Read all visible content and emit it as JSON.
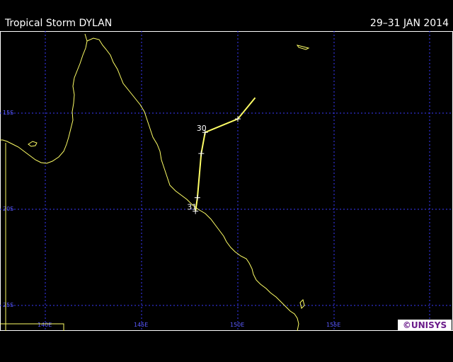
{
  "header": {
    "title": "Tropical Storm DYLAN",
    "date_range": "29–31 JAN 2014"
  },
  "map": {
    "lat_labels": [
      "15S",
      "20S",
      "25S"
    ],
    "lon_labels": [
      "140E",
      "145E",
      "150E",
      "155E"
    ],
    "grid_color": "#3a3aff",
    "coast_color": "#ffff66",
    "track_color": "#ffff66"
  },
  "storm_track": {
    "points": [
      {
        "lat": -14.2,
        "lon": 150.9
      },
      {
        "lat": -15.3,
        "lon": 150.0
      },
      {
        "lat": -16.0,
        "lon": 148.3,
        "label": "30"
      },
      {
        "lat": -17.1,
        "lon": 148.1
      },
      {
        "lat": -19.4,
        "lon": 147.9
      },
      {
        "lat": -20.1,
        "lon": 147.8,
        "label": "31"
      }
    ]
  },
  "logo": {
    "text": "©UNISYS"
  }
}
